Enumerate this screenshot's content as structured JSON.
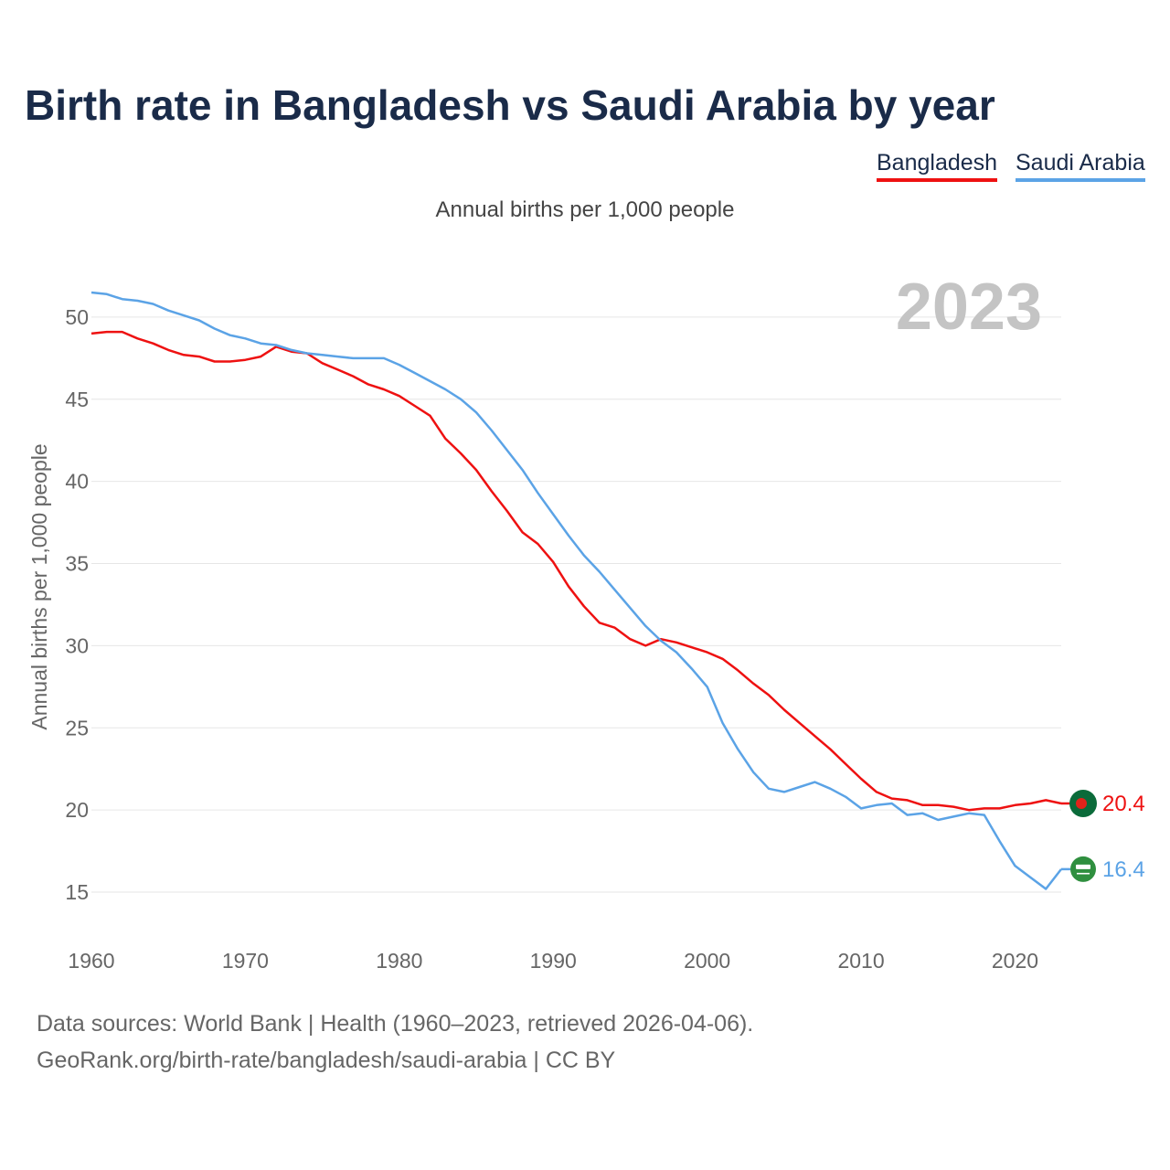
{
  "chart_data": {
    "type": "line",
    "title": "Birth rate in Bangladesh vs Saudi Arabia by year",
    "subtitle": "Annual births per 1,000 people",
    "ylabel": "Annual births per 1,000 people",
    "xlabel": "",
    "year_label": "2023",
    "xlim": [
      1960,
      2023
    ],
    "ylim": [
      12.5,
      53
    ],
    "x_ticks": [
      1960,
      1970,
      1980,
      1990,
      2000,
      2010,
      2020
    ],
    "y_ticks": [
      15,
      20,
      25,
      30,
      35,
      40,
      45,
      50
    ],
    "x": [
      1960,
      1961,
      1962,
      1963,
      1964,
      1965,
      1966,
      1967,
      1968,
      1969,
      1970,
      1971,
      1972,
      1973,
      1974,
      1975,
      1976,
      1977,
      1978,
      1979,
      1980,
      1981,
      1982,
      1983,
      1984,
      1985,
      1986,
      1987,
      1988,
      1989,
      1990,
      1991,
      1992,
      1993,
      1994,
      1995,
      1996,
      1997,
      1998,
      1999,
      2000,
      2001,
      2002,
      2003,
      2004,
      2005,
      2006,
      2007,
      2008,
      2009,
      2010,
      2011,
      2012,
      2013,
      2014,
      2015,
      2016,
      2017,
      2018,
      2019,
      2020,
      2021,
      2022,
      2023
    ],
    "series": [
      {
        "name": "Bangladesh",
        "color": "#ee1111",
        "end_label": "20.4",
        "marker": "bangladesh-flag",
        "values": [
          49.0,
          49.1,
          49.1,
          48.7,
          48.4,
          48.0,
          47.7,
          47.6,
          47.3,
          47.3,
          47.4,
          47.6,
          48.2,
          47.9,
          47.8,
          47.2,
          46.8,
          46.4,
          45.9,
          45.6,
          45.2,
          44.6,
          44.0,
          42.6,
          41.7,
          40.7,
          39.4,
          38.2,
          36.9,
          36.2,
          35.1,
          33.6,
          32.4,
          31.4,
          31.1,
          30.4,
          30.0,
          30.4,
          30.2,
          29.9,
          29.6,
          29.2,
          28.5,
          27.7,
          27.0,
          26.1,
          25.3,
          24.5,
          23.7,
          22.8,
          21.9,
          21.1,
          20.7,
          20.6,
          20.3,
          20.3,
          20.2,
          20.0,
          20.1,
          20.1,
          20.3,
          20.4,
          20.6,
          20.4
        ]
      },
      {
        "name": "Saudi Arabia",
        "color": "#5ba3e6",
        "end_label": "16.4",
        "marker": "saudi-arabia-flag",
        "values": [
          51.5,
          51.4,
          51.1,
          51.0,
          50.8,
          50.4,
          50.1,
          49.8,
          49.3,
          48.9,
          48.7,
          48.4,
          48.3,
          48.0,
          47.8,
          47.7,
          47.6,
          47.5,
          47.5,
          47.5,
          47.1,
          46.6,
          46.1,
          45.6,
          45.0,
          44.2,
          43.1,
          41.9,
          40.7,
          39.3,
          38.0,
          36.7,
          35.5,
          34.5,
          33.4,
          32.3,
          31.2,
          30.3,
          29.6,
          28.6,
          27.5,
          25.3,
          23.7,
          22.3,
          21.3,
          21.1,
          21.4,
          21.7,
          21.3,
          20.8,
          20.1,
          20.3,
          20.4,
          19.7,
          19.8,
          19.4,
          19.6,
          19.8,
          19.7,
          18.1,
          16.6,
          15.9,
          15.2,
          16.4
        ]
      }
    ]
  },
  "footer": {
    "source": "Data sources: World Bank | Health (1960–2023, retrieved 2026-04-06).",
    "url": "GeoRank.org/birth-rate/bangladesh/saudi-arabia | CC BY"
  }
}
